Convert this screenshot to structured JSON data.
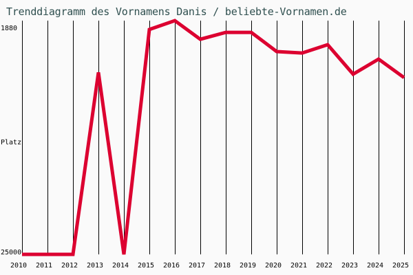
{
  "title": "Trenddiagramm des Vornamens Danis / beliebte-Vornamen.de",
  "colors": {
    "line": "#dc0030",
    "grid": "#000000",
    "title": "#2f4f4f",
    "background": "#fafafa"
  },
  "chart_data": {
    "type": "line",
    "title": "Trenddiagramm des Vornamens Danis / beliebte-Vornamen.de",
    "xlabel": "",
    "ylabel": "Platz",
    "y_tick_labels": [
      "1880",
      "25000"
    ],
    "ylim": [
      25000,
      1880
    ],
    "y_inverted": true,
    "grid": "vertical lines per year",
    "categories": [
      "2010",
      "2011",
      "2012",
      "2013",
      "2014",
      "2015",
      "2016",
      "2017",
      "2018",
      "2019",
      "2020",
      "2021",
      "2022",
      "2023",
      "2024",
      "2025"
    ],
    "series": [
      {
        "name": "Danis",
        "values": [
          25000,
          25000,
          25000,
          7000,
          25000,
          2760,
          1880,
          3720,
          3040,
          3040,
          4940,
          5080,
          4260,
          7180,
          5690,
          7520
        ]
      }
    ]
  }
}
